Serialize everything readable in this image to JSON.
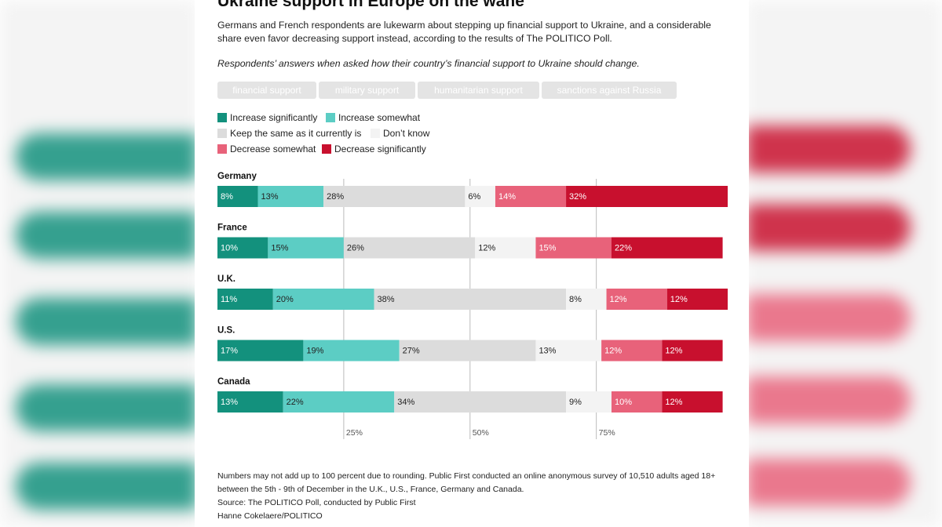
{
  "header": {
    "title": "Ukraine support in Europe on the wane",
    "subtitle": "Germans and French respondents are lukewarm about stepping up financial support to Ukraine, and a considerable share even favor decreasing support instead, according to the results of The POLITICO Poll.",
    "question": "Respondents’ answers when asked how their country’s financial support to Ukraine should change."
  },
  "tabs": [
    {
      "label": "financial support",
      "active": true
    },
    {
      "label": "military support",
      "active": false
    },
    {
      "label": "humanitarian support",
      "active": false
    },
    {
      "label": "sanctions against Russia",
      "active": false
    }
  ],
  "colors": {
    "increase_significantly": "#13917d",
    "increase_somewhat": "#5ccdc4",
    "keep_same": "#dcdcdc",
    "dont_know": "#f3f3f3",
    "decrease_somewhat": "#e8627a",
    "decrease_significantly": "#c8102e"
  },
  "chart_data": {
    "type": "bar",
    "orientation": "horizontal-stacked",
    "categories": [
      "Germany",
      "France",
      "U.K.",
      "U.S.",
      "Canada"
    ],
    "series": [
      {
        "name": "Increase significantly",
        "key": "increase_significantly",
        "values": [
          8,
          10,
          11,
          17,
          13
        ]
      },
      {
        "name": "Increase somewhat",
        "key": "increase_somewhat",
        "values": [
          13,
          15,
          20,
          19,
          22
        ]
      },
      {
        "name": "Keep the same as it currently is",
        "key": "keep_same",
        "values": [
          28,
          26,
          38,
          27,
          34
        ]
      },
      {
        "name": "Don’t know",
        "key": "dont_know",
        "values": [
          6,
          12,
          8,
          13,
          9
        ]
      },
      {
        "name": "Decrease somewhat",
        "key": "decrease_somewhat",
        "values": [
          14,
          15,
          12,
          12,
          10
        ]
      },
      {
        "name": "Decrease significantly",
        "key": "decrease_significantly",
        "values": [
          32,
          22,
          12,
          12,
          12
        ]
      }
    ],
    "value_suffix": "%",
    "reference_lines": [
      25,
      50,
      75
    ],
    "reference_labels": [
      "25%",
      "50%",
      "75%"
    ],
    "xlim": [
      0,
      101
    ]
  },
  "footer": {
    "note": "Numbers may not add up to 100 percent due to rounding. Public First conducted an online anonymous survey of 10,510 adults aged 18+ between the 5th - 9th of December in the U.K., U.S., France, Germany and Canada.",
    "source": "Source: The POLITICO Poll, conducted by Public First",
    "credit": "Hanne Cokelaere/POLITICO"
  }
}
